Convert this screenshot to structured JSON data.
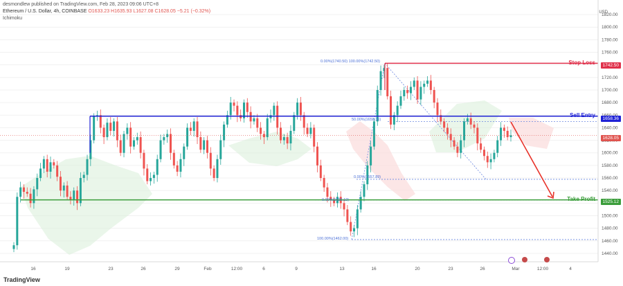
{
  "header": {
    "published": "desmondlew published on TradingView.com, Feb 28, 2023 09:06 UTC+8",
    "symbol_line": "Ethereum / U.S. Dollar, 4h, COINBASE",
    "ohlc": "O1633.23 H1635.93 L1627.08 C1628.05 −5.21 (−0.32%)",
    "indicator": "Ichimoku",
    "currency": "USD"
  },
  "price_axis": {
    "ticks": [
      "1820.00",
      "1800.00",
      "1780.00",
      "1760.00",
      "1740.00",
      "1720.00",
      "1700.00",
      "1680.00",
      "1660.00",
      "1640.00",
      "1620.00",
      "1600.00",
      "1580.00",
      "1560.00",
      "1540.00",
      "1520.00",
      "1500.00",
      "1480.00",
      "1460.00",
      "1440.00"
    ]
  },
  "time_axis": {
    "labels": [
      "16",
      "19",
      "23",
      "26",
      "29",
      "Feb",
      "12:00",
      "6",
      "9",
      "13",
      "16",
      "20",
      "23",
      "26",
      "Mar",
      "12:00",
      "4"
    ]
  },
  "levels": {
    "stop_loss": {
      "label": "Stop Loss",
      "price": "1742.50",
      "color": "#e0314b"
    },
    "sell_entry": {
      "label": "Sell Entry",
      "price": "1658.36",
      "color": "#1f22d6"
    },
    "take_profit": {
      "label": "Take Profit",
      "price": "1525.12",
      "color": "#3a9d3a"
    },
    "current": {
      "price": "1628.05",
      "color": "#e0544f"
    }
  },
  "fib_labels": {
    "top": "0.00%(1740.50) 100.00%(1742.50)",
    "mid1": "50.00%(1658.36)",
    "mid2": "0.00%(1557.89)",
    "mid3": "0.00%(1525.12)",
    "bottom": "100.00%(1462.00)"
  },
  "brand": "TradingView",
  "chart_data": {
    "type": "candlestick",
    "title": "Ethereum / U.S. Dollar, 4h, COINBASE",
    "ylabel": "USD",
    "ylim": [
      1430,
      1830
    ],
    "up_color": "#26a69a",
    "down_color": "#ef5350",
    "closes": [
      1453,
      1530,
      1545,
      1538,
      1535,
      1520,
      1542,
      1560,
      1575,
      1590,
      1570,
      1585,
      1580,
      1562,
      1540,
      1548,
      1530,
      1525,
      1540,
      1520,
      1560,
      1565,
      1590,
      1620,
      1658,
      1660,
      1640,
      1625,
      1648,
      1635,
      1650,
      1620,
      1600,
      1630,
      1640,
      1610,
      1620,
      1625,
      1600,
      1575,
      1555,
      1560,
      1565,
      1590,
      1620,
      1625,
      1630,
      1600,
      1580,
      1570,
      1590,
      1610,
      1640,
      1635,
      1650,
      1625,
      1605,
      1620,
      1600,
      1575,
      1560,
      1590,
      1620,
      1645,
      1660,
      1680,
      1675,
      1660,
      1655,
      1680,
      1665,
      1650,
      1655,
      1640,
      1630,
      1625,
      1655,
      1660,
      1675,
      1640,
      1620,
      1625,
      1615,
      1635,
      1660,
      1680,
      1660,
      1640,
      1630,
      1640,
      1610,
      1580,
      1560,
      1545,
      1530,
      1525,
      1520,
      1530,
      1520,
      1510,
      1490,
      1475,
      1480,
      1510,
      1530,
      1550,
      1580,
      1610,
      1650,
      1700,
      1730,
      1735,
      1690,
      1645,
      1660,
      1675,
      1690,
      1700,
      1695,
      1705,
      1715,
      1685,
      1705,
      1710,
      1715,
      1700,
      1680,
      1660,
      1650,
      1640,
      1630,
      1620,
      1610,
      1600,
      1620,
      1650,
      1655,
      1645,
      1640,
      1615,
      1605,
      1595,
      1585,
      1590,
      1600,
      1620,
      1640,
      1635,
      1625,
      1628.05
    ],
    "ichimoku_cloud": "shaded green/red kumo",
    "annotations": [
      "Stop Loss 1742.50",
      "Sell Entry 1658.36",
      "Take Profit 1525.12",
      "Fibonacci retracement 1462.00–1742.50"
    ]
  }
}
